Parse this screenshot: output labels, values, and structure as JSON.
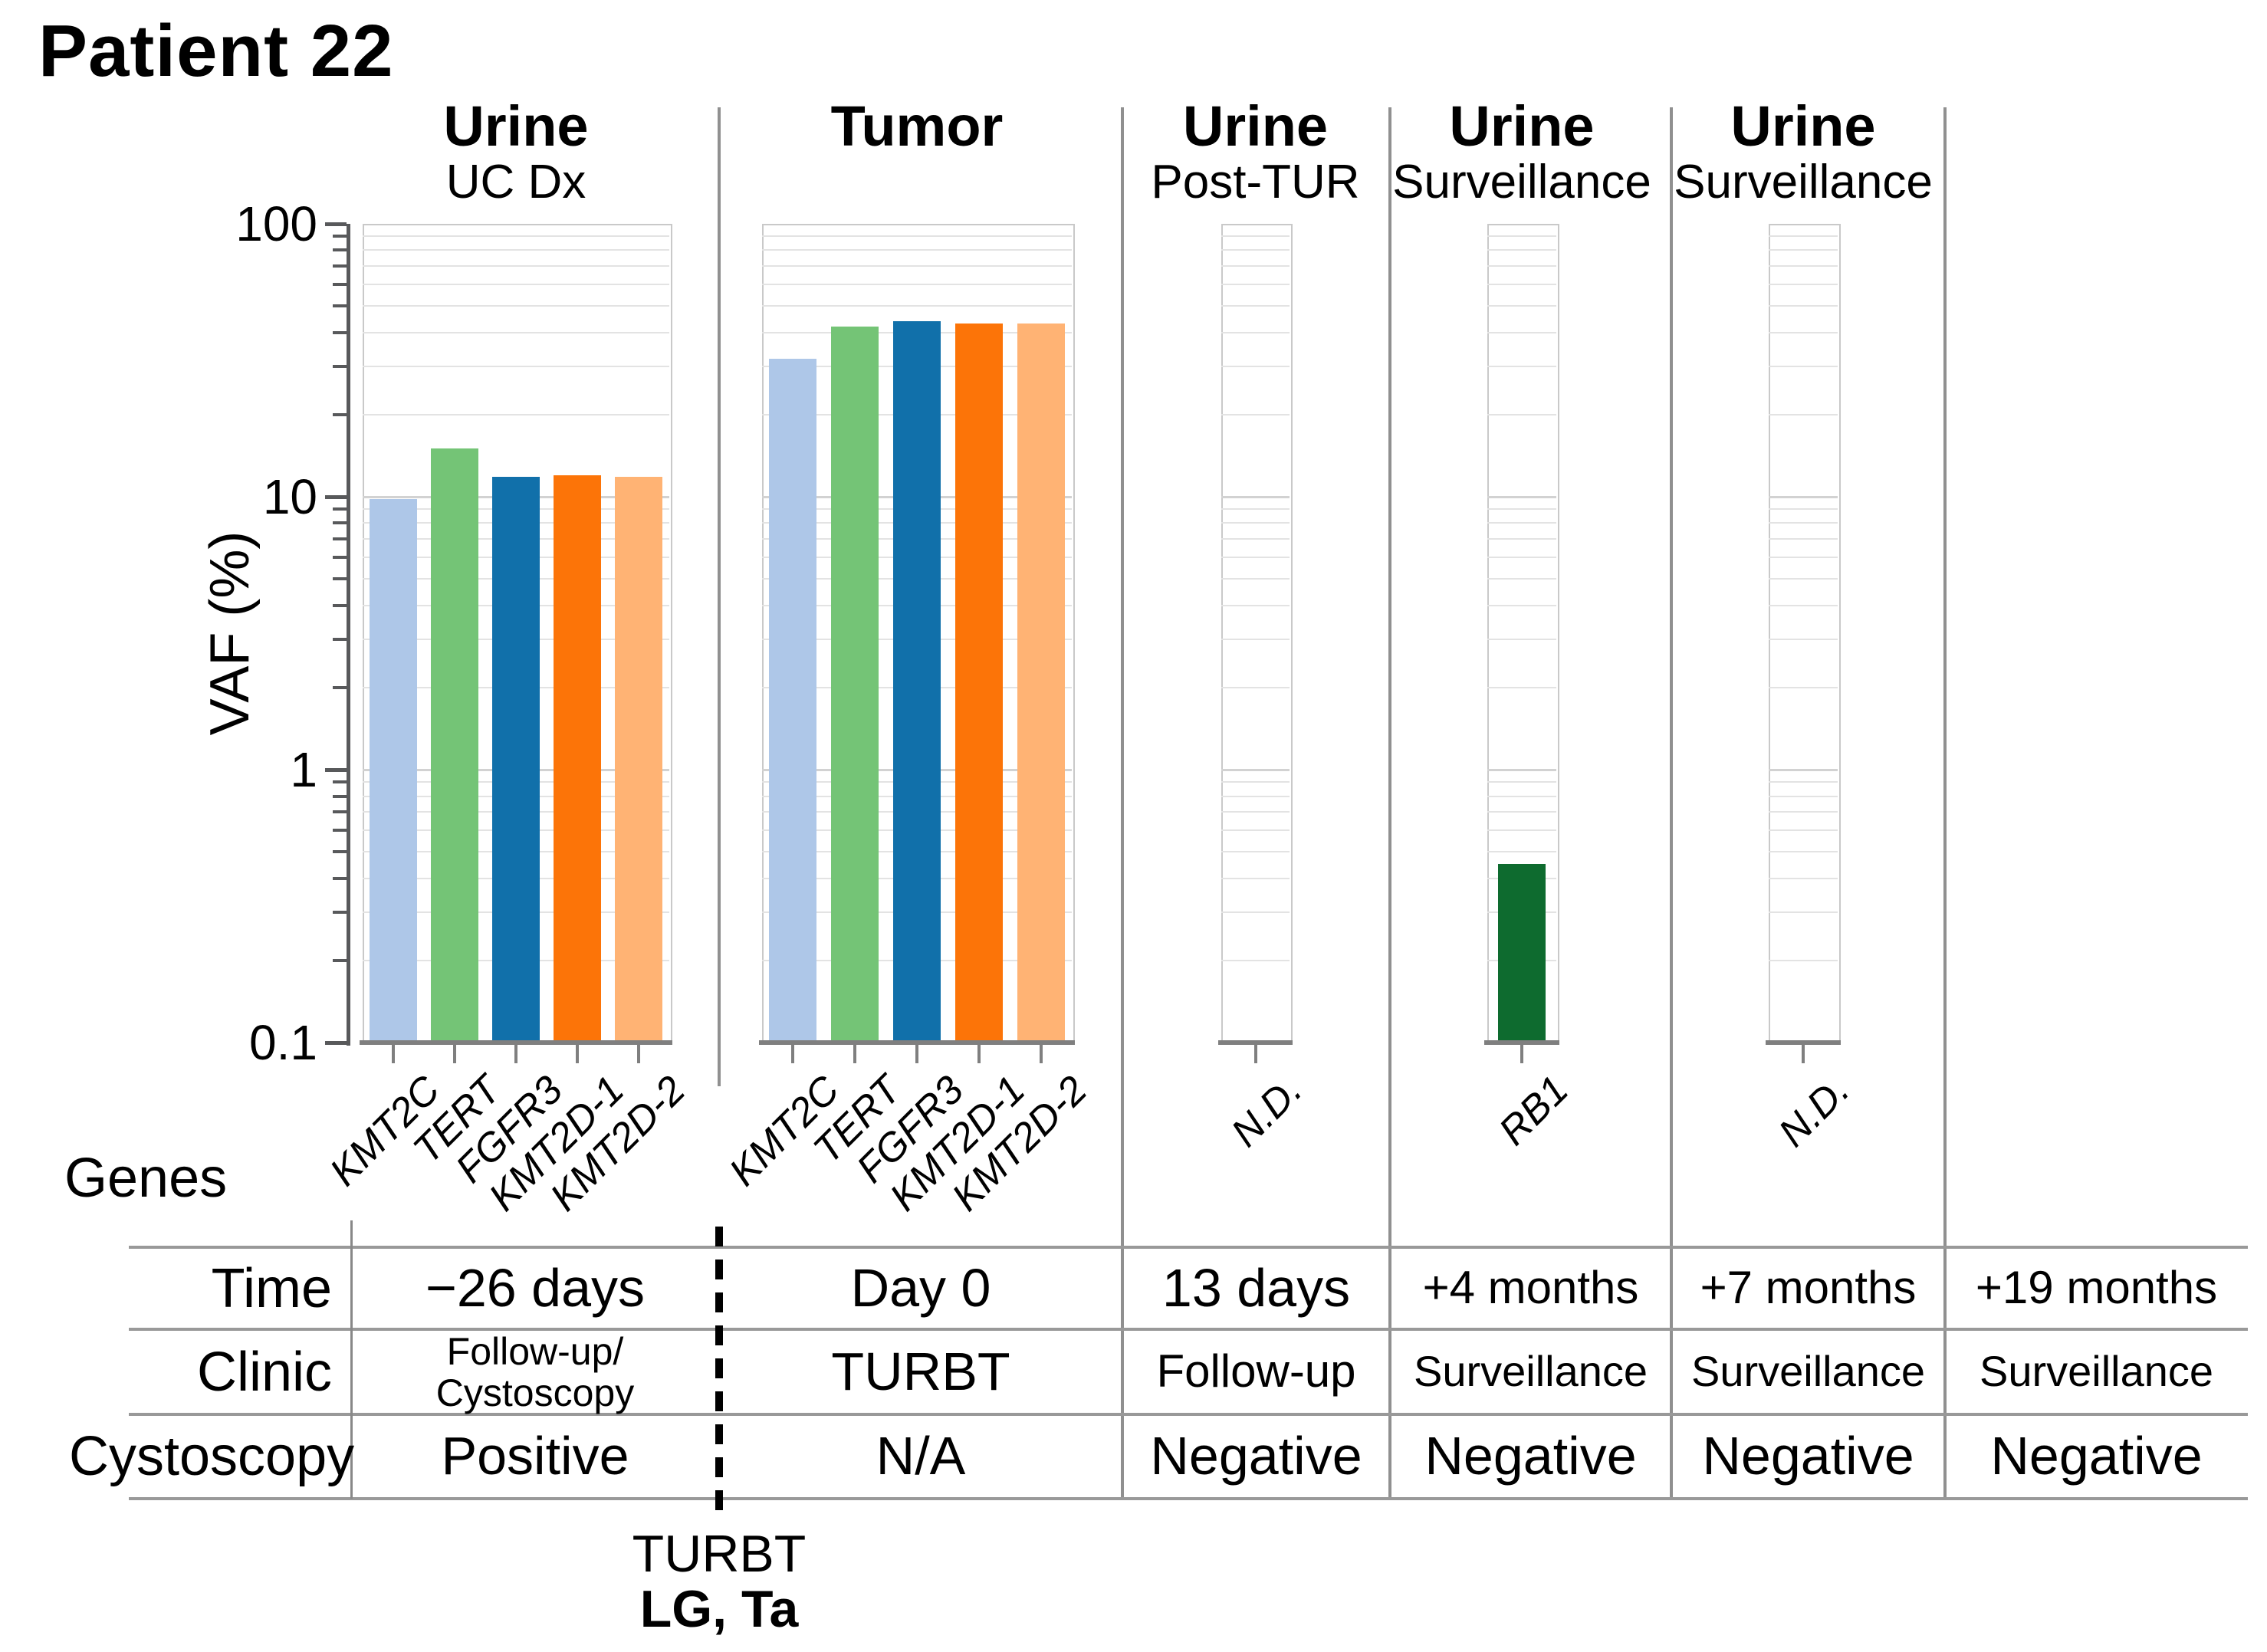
{
  "title": "Patient 22",
  "y_axis": {
    "label": "VAF (%)",
    "scale": "log",
    "min": 0.1,
    "max": 100,
    "tick_labels": [
      "100",
      "10",
      "1",
      "0.1"
    ],
    "tick_values": [
      100,
      10,
      1,
      0.1
    ]
  },
  "genes_axis_label": "Genes",
  "gene_colors": {
    "KMT2C": "#aec7e8",
    "TERT": "#74c476",
    "FGFR3": "#1170aa",
    "KMT2D-1": "#fc7408",
    "KMT2D-2": "#ffb374",
    "RB1": "#0e6b2f"
  },
  "chart_data": {
    "type": "bar",
    "yscale": "log",
    "ylim": [
      0.1,
      100
    ],
    "ylabel": "VAF (%)",
    "grid": "horizontal log major+minor, light gray",
    "legend": "none",
    "panels": [
      {
        "header": "Urine",
        "subheader": "UC Dx",
        "categories": [
          "KMT2C",
          "TERT",
          "FGFR3",
          "KMT2D-1",
          "KMT2D-2"
        ],
        "values": [
          9.8,
          15,
          11.8,
          12,
          11.8
        ]
      },
      {
        "header": "Tumor",
        "subheader": "",
        "categories": [
          "KMT2C",
          "TERT",
          "FGFR3",
          "KMT2D-1",
          "KMT2D-2"
        ],
        "values": [
          32,
          42,
          44,
          43,
          43
        ]
      },
      {
        "header": "Urine",
        "subheader": "Post-TUR",
        "categories": [
          "N.D."
        ],
        "values": [
          null
        ]
      },
      {
        "header": "Urine",
        "subheader": "Surveillance",
        "categories": [
          "RB1"
        ],
        "values": [
          0.45
        ]
      },
      {
        "header": "Urine",
        "subheader": "Surveillance",
        "categories": [
          "N.D."
        ],
        "values": [
          null
        ]
      }
    ]
  },
  "table": {
    "row_labels": [
      "Time",
      "Clinic",
      "Cystoscopy"
    ],
    "rows": {
      "time": [
        "−26 days",
        "Day 0",
        "13 days",
        "+4 months",
        "+7 months",
        "+19 months"
      ],
      "clinic": [
        [
          "Follow-up/",
          "Cystoscopy"
        ],
        "TURBT",
        "Follow-up",
        "Surveillance",
        "Surveillance",
        "Surveillance"
      ],
      "cystoscopy": [
        "Positive",
        "N/A",
        "Negative",
        "Negative",
        "Negative",
        "Negative"
      ]
    }
  },
  "annotation": {
    "line1": "TURBT",
    "line2": "LG, Ta"
  }
}
